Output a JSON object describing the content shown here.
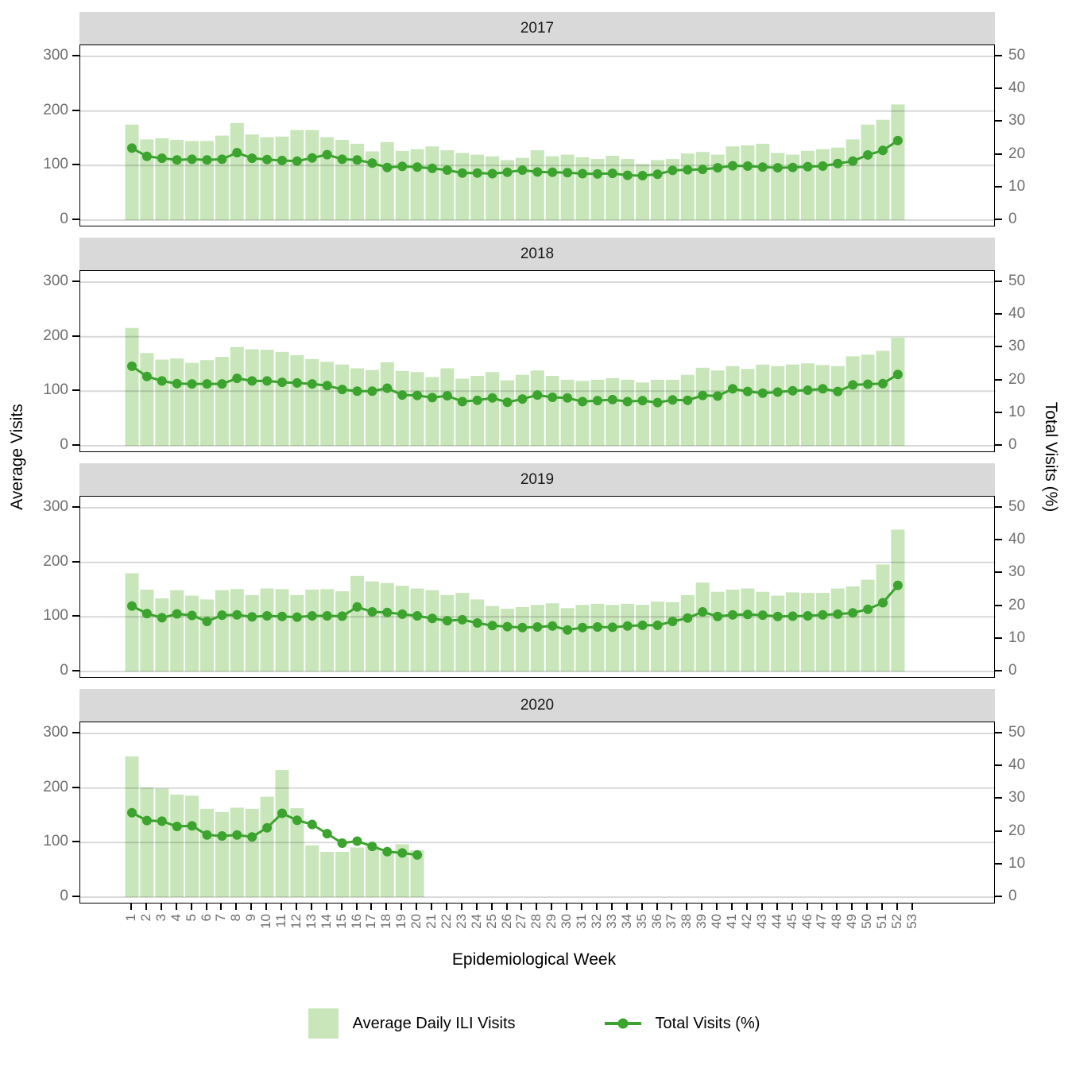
{
  "axes": {
    "x_title": "Epidemiological Week",
    "left_title": "Average Visits",
    "right_title": "Total Visits (%)",
    "left_ticks": [
      300,
      200,
      100,
      0
    ],
    "right_ticks": [
      50,
      40,
      30,
      20,
      10,
      0
    ],
    "left_range": [
      0,
      300
    ],
    "right_range": [
      0,
      50
    ],
    "x_ticks": [
      1,
      2,
      3,
      4,
      5,
      6,
      7,
      8,
      9,
      10,
      11,
      12,
      13,
      14,
      15,
      16,
      17,
      18,
      19,
      20,
      21,
      22,
      23,
      24,
      25,
      26,
      27,
      28,
      29,
      30,
      31,
      32,
      33,
      34,
      35,
      36,
      37,
      38,
      39,
      40,
      41,
      42,
      43,
      44,
      45,
      46,
      47,
      48,
      49,
      50,
      51,
      52,
      53
    ]
  },
  "legend": {
    "bar_label": "Average Daily ILI Visits",
    "line_label": "Total Visits (%)"
  },
  "colors": {
    "bar": "#c8e6ba",
    "line": "#3ca32e",
    "strip_bg": "#d9d9d9",
    "gridline_over": "rgba(0,0,0,0.15)",
    "tick_text": "#6e6e6e",
    "text": "#000000",
    "panel_border": "#000000"
  },
  "chart_data": [
    {
      "type": "bar",
      "facet": "2017",
      "x": [
        1,
        2,
        3,
        4,
        5,
        6,
        7,
        8,
        9,
        10,
        11,
        12,
        13,
        14,
        15,
        16,
        17,
        18,
        19,
        20,
        21,
        22,
        23,
        24,
        25,
        26,
        27,
        28,
        29,
        30,
        31,
        32,
        33,
        34,
        35,
        36,
        37,
        38,
        39,
        40,
        41,
        42,
        43,
        44,
        45,
        46,
        47,
        48,
        49,
        50,
        51,
        52
      ],
      "series": [
        {
          "name": "Average Daily ILI Visits",
          "axis": "left",
          "type": "bar",
          "values": [
            175,
            148,
            150,
            147,
            145,
            145,
            155,
            178,
            157,
            152,
            153,
            165,
            165,
            152,
            147,
            140,
            126,
            143,
            127,
            130,
            135,
            128,
            123,
            120,
            117,
            110,
            114,
            128,
            117,
            120,
            115,
            112,
            118,
            112,
            103,
            110,
            112,
            122,
            125,
            120,
            135,
            137,
            140,
            123,
            120,
            127,
            130,
            133,
            148,
            175,
            184,
            212
          ]
        },
        {
          "name": "Total Visits (%)",
          "axis": "right",
          "type": "line",
          "values": [
            22.0,
            19.5,
            18.9,
            18.4,
            18.6,
            18.4,
            18.6,
            20.6,
            18.9,
            18.5,
            18.2,
            18.0,
            19.0,
            20.0,
            18.6,
            18.4,
            17.4,
            16.1,
            16.4,
            16.2,
            15.8,
            15.3,
            14.4,
            14.4,
            14.2,
            14.6,
            15.3,
            14.7,
            14.6,
            14.5,
            14.2,
            14.1,
            14.3,
            13.7,
            13.6,
            14.0,
            15.2,
            15.4,
            15.5,
            16.0,
            16.6,
            16.5,
            16.2,
            16.0,
            16.1,
            16.3,
            16.5,
            17.3,
            18.0,
            19.9,
            21.3,
            24.3
          ]
        }
      ]
    },
    {
      "type": "bar",
      "facet": "2018",
      "x": [
        1,
        2,
        3,
        4,
        5,
        6,
        7,
        8,
        9,
        10,
        11,
        12,
        13,
        14,
        15,
        16,
        17,
        18,
        19,
        20,
        21,
        22,
        23,
        24,
        25,
        26,
        27,
        28,
        29,
        30,
        31,
        32,
        33,
        34,
        35,
        36,
        37,
        38,
        39,
        40,
        41,
        42,
        43,
        44,
        45,
        46,
        47,
        48,
        49,
        50,
        51,
        52
      ],
      "series": [
        {
          "name": "Average Daily ILI Visits",
          "axis": "left",
          "type": "bar",
          "values": [
            216,
            170,
            158,
            160,
            152,
            157,
            163,
            181,
            177,
            176,
            172,
            166,
            159,
            154,
            149,
            142,
            139,
            153,
            137,
            135,
            126,
            142,
            123,
            128,
            135,
            120,
            130,
            138,
            128,
            121,
            119,
            121,
            124,
            121,
            116,
            121,
            121,
            130,
            143,
            138,
            146,
            141,
            149,
            146,
            149,
            151,
            148,
            146,
            164,
            167,
            174,
            198
          ]
        },
        {
          "name": "Total Visits (%)",
          "axis": "right",
          "type": "line",
          "values": [
            24.3,
            21.2,
            19.8,
            19.0,
            18.9,
            18.9,
            18.9,
            20.6,
            19.8,
            19.8,
            19.4,
            19.2,
            18.9,
            18.4,
            17.2,
            16.7,
            16.7,
            17.6,
            15.5,
            15.4,
            14.7,
            15.3,
            13.5,
            13.9,
            14.6,
            13.3,
            14.3,
            15.5,
            14.8,
            14.6,
            13.5,
            13.8,
            14.1,
            13.5,
            13.8,
            13.2,
            14.0,
            13.9,
            15.4,
            15.2,
            17.4,
            16.6,
            16.1,
            16.4,
            16.8,
            17.0,
            17.4,
            16.6,
            18.6,
            18.8,
            19.0,
            21.8
          ]
        }
      ]
    },
    {
      "type": "bar",
      "facet": "2019",
      "x": [
        1,
        2,
        3,
        4,
        5,
        6,
        7,
        8,
        9,
        10,
        11,
        12,
        13,
        14,
        15,
        16,
        17,
        18,
        19,
        20,
        21,
        22,
        23,
        24,
        25,
        26,
        27,
        28,
        29,
        30,
        31,
        32,
        33,
        34,
        35,
        36,
        37,
        38,
        39,
        40,
        41,
        42,
        43,
        44,
        45,
        46,
        47,
        48,
        49,
        50,
        51,
        52
      ],
      "series": [
        {
          "name": "Average Daily ILI Visits",
          "axis": "left",
          "type": "bar",
          "values": [
            180,
            150,
            134,
            149,
            139,
            132,
            149,
            151,
            140,
            152,
            151,
            140,
            150,
            151,
            147,
            175,
            165,
            162,
            157,
            152,
            149,
            140,
            144,
            132,
            120,
            115,
            118,
            122,
            125,
            116,
            122,
            124,
            122,
            124,
            122,
            128,
            127,
            140,
            163,
            146,
            150,
            152,
            146,
            139,
            145,
            144,
            144,
            152,
            156,
            168,
            196,
            260
          ]
        },
        {
          "name": "Total Visits (%)",
          "axis": "right",
          "type": "line",
          "values": [
            20.0,
            17.7,
            16.4,
            17.6,
            17.1,
            15.3,
            17.2,
            17.3,
            16.7,
            17.0,
            16.8,
            16.6,
            17.0,
            17.0,
            16.9,
            19.7,
            18.2,
            18.0,
            17.5,
            17.0,
            16.2,
            15.5,
            15.8,
            14.8,
            14.0,
            13.7,
            13.4,
            13.6,
            13.9,
            12.7,
            13.4,
            13.6,
            13.5,
            13.9,
            14.1,
            14.1,
            15.3,
            16.3,
            18.2,
            16.8,
            17.3,
            17.4,
            17.2,
            16.8,
            16.9,
            17.0,
            17.3,
            17.5,
            17.9,
            19.0,
            21.0,
            26.3
          ]
        }
      ]
    },
    {
      "type": "bar",
      "facet": "2020",
      "x": [
        1,
        2,
        3,
        4,
        5,
        6,
        7,
        8,
        9,
        10,
        11,
        12,
        13,
        14,
        15,
        16,
        17,
        18,
        19,
        20
      ],
      "series": [
        {
          "name": "Average Daily ILI Visits",
          "axis": "left",
          "type": "bar",
          "values": [
            258,
            201,
            199,
            188,
            186,
            162,
            156,
            164,
            162,
            184,
            233,
            163,
            95,
            83,
            83,
            91,
            93,
            83,
            97,
            86
          ]
        },
        {
          "name": "Total Visits (%)",
          "axis": "right",
          "type": "line",
          "values": [
            25.8,
            23.4,
            23.2,
            21.6,
            21.8,
            19.0,
            18.7,
            19.0,
            18.4,
            21.2,
            25.6,
            23.5,
            22.2,
            19.4,
            16.5,
            17.1,
            15.5,
            13.9,
            13.5,
            12.9
          ]
        }
      ]
    }
  ]
}
